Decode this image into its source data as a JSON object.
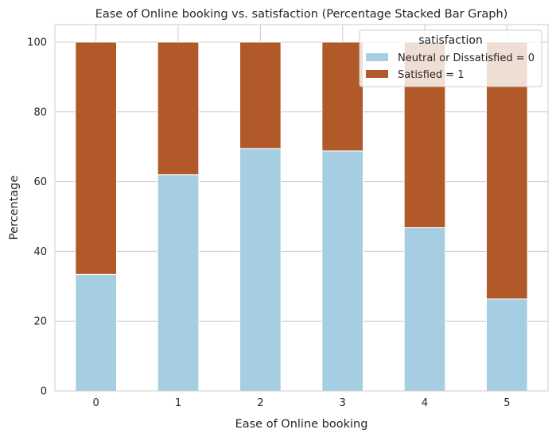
{
  "chart_data": {
    "type": "bar",
    "stacked": true,
    "title": "Ease of Online booking vs. satisfaction (Percentage Stacked Bar Graph)",
    "xlabel": "Ease of Online booking",
    "ylabel": "Percentage",
    "categories": [
      "0",
      "1",
      "2",
      "3",
      "4",
      "5"
    ],
    "ylim": [
      0,
      105
    ],
    "yticks": [
      "0",
      "20",
      "40",
      "60",
      "80",
      "100"
    ],
    "grid": true,
    "legend": {
      "title": "satisfaction",
      "placement": "top-right"
    },
    "series": [
      {
        "name": "Neutral or Dissatisfied = 0",
        "color": "#a6cee3",
        "values": [
          33.4,
          62.0,
          69.5,
          68.8,
          46.8,
          26.4
        ]
      },
      {
        "name": "Satisfied = 1",
        "color": "#b15928",
        "values": [
          66.6,
          38.0,
          30.5,
          31.2,
          53.2,
          73.6
        ]
      }
    ]
  }
}
